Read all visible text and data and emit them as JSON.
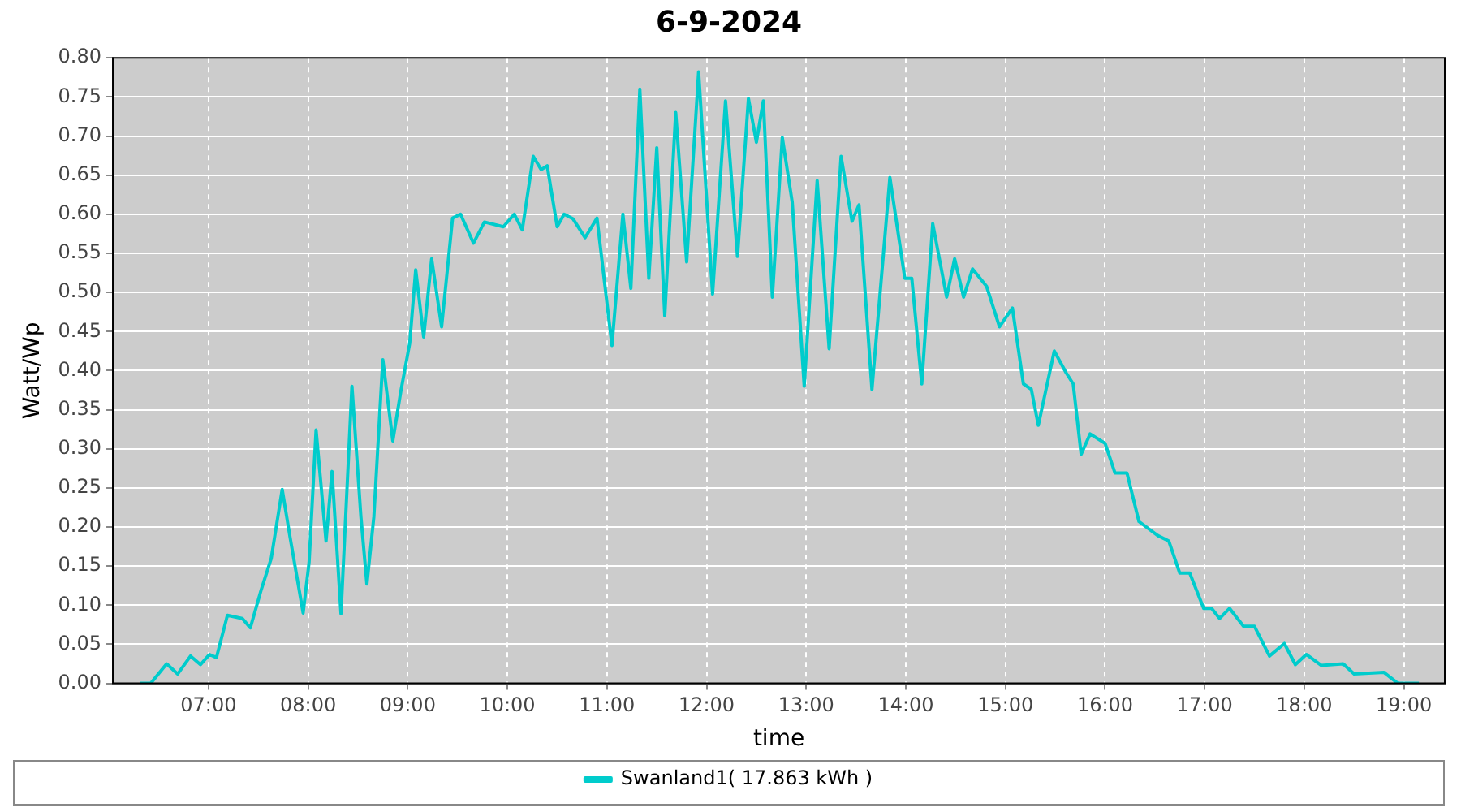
{
  "chart_data": {
    "type": "line",
    "title": "6-9-2024",
    "xlabel": "time",
    "ylabel": "Watt/Wp",
    "xlim": [
      6.04,
      19.41
    ],
    "xticks": [
      {
        "value": 7,
        "label": "07:00"
      },
      {
        "value": 8,
        "label": "08:00"
      },
      {
        "value": 9,
        "label": "09:00"
      },
      {
        "value": 10,
        "label": "10:00"
      },
      {
        "value": 11,
        "label": "11:00"
      },
      {
        "value": 12,
        "label": "12:00"
      },
      {
        "value": 13,
        "label": "13:00"
      },
      {
        "value": 14,
        "label": "14:00"
      },
      {
        "value": 15,
        "label": "15:00"
      },
      {
        "value": 16,
        "label": "16:00"
      },
      {
        "value": 17,
        "label": "17:00"
      },
      {
        "value": 18,
        "label": "18:00"
      },
      {
        "value": 19,
        "label": "19:00"
      }
    ],
    "ylim": [
      0,
      0.8
    ],
    "yticks": [
      {
        "value": 0,
        "label": "0.00"
      },
      {
        "value": 0.05,
        "label": "0.05"
      },
      {
        "value": 0.1,
        "label": "0.10"
      },
      {
        "value": 0.15,
        "label": "0.15"
      },
      {
        "value": 0.2,
        "label": "0.20"
      },
      {
        "value": 0.25,
        "label": "0.25"
      },
      {
        "value": 0.3,
        "label": "0.30"
      },
      {
        "value": 0.35,
        "label": "0.35"
      },
      {
        "value": 0.4,
        "label": "0.40"
      },
      {
        "value": 0.45,
        "label": "0.45"
      },
      {
        "value": 0.5,
        "label": "0.50"
      },
      {
        "value": 0.55,
        "label": "0.55"
      },
      {
        "value": 0.6,
        "label": "0.60"
      },
      {
        "value": 0.65,
        "label": "0.65"
      },
      {
        "value": 0.7,
        "label": "0.70"
      },
      {
        "value": 0.75,
        "label": "0.75"
      },
      {
        "value": 0.8,
        "label": "0.80"
      }
    ],
    "grid": true,
    "legend": "bottom",
    "marker": "none",
    "line_style": "solid",
    "series": [
      {
        "name": "Swanland1( 17.863 kWh )",
        "color": "#00cccc",
        "x": [
          6.31,
          6.42,
          6.58,
          6.69,
          6.82,
          6.92,
          7.01,
          7.08,
          7.19,
          7.34,
          7.42,
          7.53,
          7.63,
          7.74,
          7.82,
          7.95,
          8.01,
          8.08,
          8.18,
          8.24,
          8.33,
          8.44,
          8.53,
          8.59,
          8.66,
          8.75,
          8.85,
          8.93,
          9.02,
          9.08,
          9.16,
          9.24,
          9.34,
          9.45,
          9.53,
          9.66,
          9.77,
          9.96,
          10.07,
          10.15,
          10.26,
          10.34,
          10.4,
          10.5,
          10.57,
          10.66,
          10.78,
          10.9,
          11.05,
          11.16,
          11.24,
          11.33,
          11.42,
          11.5,
          11.58,
          11.69,
          11.8,
          11.92,
          12.06,
          12.19,
          12.31,
          12.42,
          12.5,
          12.57,
          12.66,
          12.76,
          12.86,
          12.98,
          13.11,
          13.23,
          13.35,
          13.46,
          13.53,
          13.66,
          13.84,
          13.99,
          14.06,
          14.16,
          14.27,
          14.41,
          14.49,
          14.58,
          14.67,
          14.81,
          14.94,
          15.07,
          15.18,
          15.26,
          15.33,
          15.49,
          15.61,
          15.68,
          15.76,
          15.85,
          16.0,
          16.1,
          16.22,
          16.34,
          16.53,
          16.64,
          16.75,
          16.85,
          16.99,
          17.07,
          17.15,
          17.25,
          17.39,
          17.5,
          17.65,
          17.8,
          17.91,
          18.02,
          18.17,
          18.39,
          18.5,
          18.8,
          18.94,
          19.15
        ],
        "values": [
          0,
          0,
          0.025,
          0.012,
          0.035,
          0.024,
          0.037,
          0.033,
          0.087,
          0.083,
          0.071,
          0.12,
          0.16,
          0.248,
          0.186,
          0.09,
          0.155,
          0.324,
          0.182,
          0.271,
          0.089,
          0.38,
          0.213,
          0.127,
          0.213,
          0.414,
          0.31,
          0.373,
          0.435,
          0.529,
          0.443,
          0.543,
          0.456,
          0.595,
          0.6,
          0.563,
          0.59,
          0.584,
          0.6,
          0.58,
          0.674,
          0.657,
          0.662,
          0.584,
          0.6,
          0.594,
          0.57,
          0.595,
          0.432,
          0.6,
          0.505,
          0.76,
          0.518,
          0.685,
          0.47,
          0.73,
          0.539,
          0.782,
          0.498,
          0.745,
          0.546,
          0.748,
          0.692,
          0.745,
          0.494,
          0.698,
          0.615,
          0.38,
          0.643,
          0.428,
          0.674,
          0.591,
          0.612,
          0.376,
          0.647,
          0.518,
          0.518,
          0.383,
          0.588,
          0.494,
          0.543,
          0.494,
          0.53,
          0.508,
          0.456,
          0.48,
          0.383,
          0.376,
          0.33,
          0.425,
          0.397,
          0.383,
          0.293,
          0.319,
          0.307,
          0.269,
          0.269,
          0.207,
          0.189,
          0.182,
          0.141,
          0.141,
          0.096,
          0.096,
          0.083,
          0.096,
          0.073,
          0.073,
          0.035,
          0.051,
          0.024,
          0.037,
          0.023,
          0.025,
          0.012,
          0.014,
          0,
          0
        ]
      }
    ]
  }
}
